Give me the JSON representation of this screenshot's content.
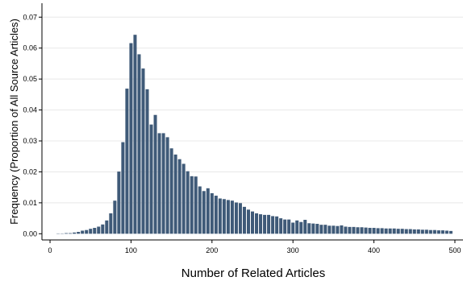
{
  "chart_data": {
    "type": "bar",
    "xlabel": "Number of Related Articles",
    "ylabel": "Frequency (Proportion of All Source Articles)",
    "xlim": [
      -10,
      510
    ],
    "ylim": [
      -0.002,
      0.0745
    ],
    "grid": true,
    "x_ticks": [
      0,
      100,
      200,
      300,
      400,
      500
    ],
    "x_tick_labels": [
      "0",
      "100",
      "200",
      "300",
      "400",
      "500"
    ],
    "y_ticks": [
      0,
      0.01,
      0.02,
      0.03,
      0.04,
      0.05,
      0.06,
      0.07
    ],
    "y_tick_labels": [
      "0.00",
      "0.01",
      "0.02",
      "0.03",
      "0.04",
      "0.05",
      "0.06",
      "0.07"
    ],
    "bin_width": 5,
    "x": [
      10,
      15,
      20,
      25,
      30,
      35,
      40,
      45,
      50,
      55,
      60,
      65,
      70,
      75,
      80,
      85,
      90,
      95,
      100,
      105,
      110,
      115,
      120,
      125,
      130,
      135,
      140,
      145,
      150,
      155,
      160,
      165,
      170,
      175,
      180,
      185,
      190,
      195,
      200,
      205,
      210,
      215,
      220,
      225,
      230,
      235,
      240,
      245,
      250,
      255,
      260,
      265,
      270,
      275,
      280,
      285,
      290,
      295,
      300,
      305,
      310,
      315,
      320,
      325,
      330,
      335,
      340,
      345,
      350,
      355,
      360,
      365,
      370,
      375,
      380,
      385,
      390,
      395,
      400,
      405,
      410,
      415,
      420,
      425,
      430,
      435,
      440,
      445,
      450,
      455,
      460,
      465,
      470,
      475,
      480,
      485,
      490,
      495
    ],
    "values": [
      0.0001,
      0.0001,
      0.0002,
      0.0002,
      0.0004,
      0.0006,
      0.001,
      0.0012,
      0.0016,
      0.0019,
      0.0023,
      0.003,
      0.0043,
      0.0066,
      0.0107,
      0.0201,
      0.0296,
      0.0469,
      0.0616,
      0.0643,
      0.058,
      0.0534,
      0.0467,
      0.0353,
      0.0384,
      0.0325,
      0.0325,
      0.0312,
      0.0276,
      0.0256,
      0.0241,
      0.0226,
      0.0202,
      0.0186,
      0.0185,
      0.0153,
      0.0138,
      0.0147,
      0.0131,
      0.0123,
      0.0114,
      0.0112,
      0.0109,
      0.0107,
      0.0101,
      0.0099,
      0.0087,
      0.0078,
      0.0072,
      0.0066,
      0.0063,
      0.0061,
      0.0061,
      0.0057,
      0.0056,
      0.005,
      0.0046,
      0.0046,
      0.0036,
      0.0043,
      0.0038,
      0.0045,
      0.0034,
      0.0033,
      0.0032,
      0.0029,
      0.0029,
      0.0026,
      0.0026,
      0.0025,
      0.0027,
      0.0023,
      0.0022,
      0.0022,
      0.0021,
      0.0021,
      0.002,
      0.0019,
      0.0019,
      0.0018,
      0.0018,
      0.0017,
      0.0017,
      0.0017,
      0.0016,
      0.0016,
      0.0015,
      0.0015,
      0.0014,
      0.0014,
      0.0013,
      0.0013,
      0.0012,
      0.0012,
      0.0011,
      0.0011,
      0.001,
      0.0009
    ]
  }
}
